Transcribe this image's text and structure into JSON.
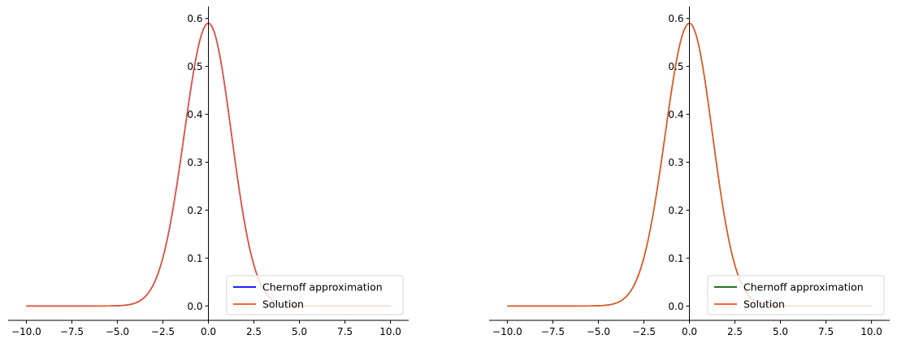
{
  "chart_data": [
    {
      "type": "line",
      "title": "",
      "xlabel": "",
      "ylabel": "",
      "xlim": [
        -11,
        11
      ],
      "ylim": [
        -0.03,
        0.625
      ],
      "xticks": [
        -10,
        -7.5,
        -5,
        -2.5,
        0,
        2.5,
        5,
        7.5,
        10
      ],
      "xtick_labels": [
        "−10.0",
        "−7.5",
        "−5.0",
        "−2.5",
        "0.0",
        "2.5",
        "5.0",
        "7.5",
        "10.0"
      ],
      "yticks": [
        0,
        0.1,
        0.2,
        0.3,
        0.4,
        0.5,
        0.6
      ],
      "ytick_labels": [
        "0.0",
        "0.1",
        "0.2",
        "0.3",
        "0.4",
        "0.5",
        "0.6"
      ],
      "grid": false,
      "legend_position": "lower-right",
      "x_range": [
        -10,
        10
      ],
      "peak": {
        "x": 0,
        "y": 0.59
      },
      "series": [
        {
          "name": "Chernoff approximation",
          "color": "#0000ff",
          "x": [
            -10,
            -5,
            -4,
            -3,
            -2.5,
            -2,
            -1.5,
            -1,
            -0.5,
            0,
            0.5,
            1,
            1.5,
            2,
            2.5,
            3,
            4,
            5,
            10
          ],
          "values": [
            0,
            0.002,
            0.02,
            0.085,
            0.16,
            0.255,
            0.37,
            0.48,
            0.565,
            0.59,
            0.56,
            0.47,
            0.35,
            0.22,
            0.11,
            0.045,
            0.006,
            0,
            0
          ]
        },
        {
          "name": "Solution",
          "color": "#f4511e",
          "x": [
            -10,
            -5,
            -4,
            -3,
            -2.5,
            -2,
            -1.5,
            -1,
            -0.5,
            0,
            0.5,
            1,
            1.5,
            2,
            2.5,
            3,
            4,
            5,
            10
          ],
          "values": [
            0,
            0.002,
            0.02,
            0.085,
            0.16,
            0.255,
            0.37,
            0.48,
            0.565,
            0.59,
            0.56,
            0.47,
            0.35,
            0.22,
            0.11,
            0.045,
            0.006,
            0,
            0
          ]
        }
      ]
    },
    {
      "type": "line",
      "title": "",
      "xlabel": "",
      "ylabel": "",
      "xlim": [
        -11,
        11
      ],
      "ylim": [
        -0.03,
        0.625
      ],
      "xticks": [
        -10,
        -7.5,
        -5,
        -2.5,
        0,
        2.5,
        5,
        7.5,
        10
      ],
      "xtick_labels": [
        "−10.0",
        "−7.5",
        "−5.0",
        "−2.5",
        "0.0",
        "2.5",
        "5.0",
        "7.5",
        "10.0"
      ],
      "yticks": [
        0,
        0.1,
        0.2,
        0.3,
        0.4,
        0.5,
        0.6
      ],
      "ytick_labels": [
        "0.0",
        "0.1",
        "0.2",
        "0.3",
        "0.4",
        "0.5",
        "0.6"
      ],
      "grid": false,
      "legend_position": "lower-right",
      "x_range": [
        -10,
        10
      ],
      "peak": {
        "x": 0,
        "y": 0.59
      },
      "series": [
        {
          "name": "Chernoff approximation",
          "color": "#006400",
          "x": [
            -10,
            -5,
            -4,
            -3,
            -2.5,
            -2,
            -1.5,
            -1,
            -0.5,
            0,
            0.5,
            1,
            1.5,
            2,
            2.5,
            3,
            4,
            5,
            10
          ],
          "values": [
            0,
            0.002,
            0.02,
            0.085,
            0.16,
            0.255,
            0.37,
            0.48,
            0.565,
            0.59,
            0.56,
            0.47,
            0.35,
            0.22,
            0.11,
            0.045,
            0.006,
            0,
            0
          ]
        },
        {
          "name": "Solution",
          "color": "#f4511e",
          "x": [
            -10,
            -5,
            -4,
            -3,
            -2.5,
            -2,
            -1.5,
            -1,
            -0.5,
            0,
            0.5,
            1,
            1.5,
            2,
            2.5,
            3,
            4,
            5,
            10
          ],
          "values": [
            0,
            0.002,
            0.02,
            0.085,
            0.16,
            0.255,
            0.37,
            0.48,
            0.565,
            0.59,
            0.56,
            0.47,
            0.35,
            0.22,
            0.11,
            0.045,
            0.006,
            0,
            0
          ]
        }
      ]
    }
  ]
}
